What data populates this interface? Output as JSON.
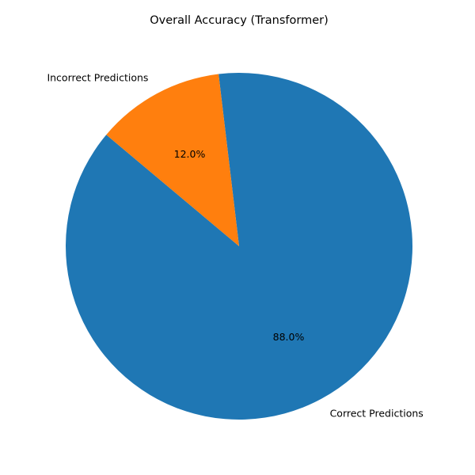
{
  "chart_data": {
    "type": "pie",
    "title": "Overall Accuracy (Transformer)",
    "slices": [
      {
        "label": "Correct Predictions",
        "value": 88.0,
        "pct_label": "88.0%",
        "color": "#1f77b4"
      },
      {
        "label": "Incorrect Predictions",
        "value": 12.0,
        "pct_label": "12.0%",
        "color": "#ff7f0e"
      }
    ],
    "start_angle_deg": 140,
    "direction": "counterclockwise",
    "legend": "none"
  }
}
